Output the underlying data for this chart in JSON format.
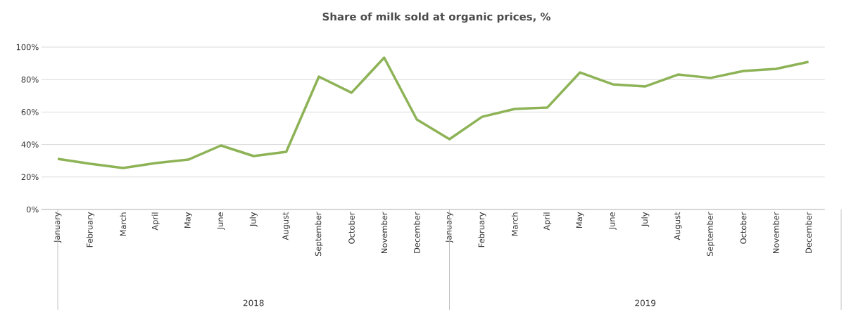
{
  "chart_data": {
    "type": "line",
    "title": "Share of milk sold at organic prices, %",
    "categories": [
      "January",
      "February",
      "March",
      "April",
      "May",
      "June",
      "July",
      "August",
      "September",
      "October",
      "November",
      "December",
      "January",
      "February",
      "March",
      "April",
      "May",
      "June",
      "July",
      "August",
      "September",
      "October",
      "November",
      "December"
    ],
    "series": [
      {
        "color": "#8db356",
        "values": [
          31.2,
          28.1,
          25.5,
          28.6,
          30.7,
          39.4,
          32.9,
          35.5,
          81.8,
          71.9,
          93.5,
          55.4,
          43.3,
          57.1,
          61.9,
          62.8,
          84.4,
          77.1,
          75.8,
          83.1,
          81.0,
          85.3,
          86.6,
          90.9
        ]
      }
    ],
    "ylim": [
      0,
      100
    ],
    "yticks": [
      {
        "value": 0,
        "label": "0%"
      },
      {
        "value": 20,
        "label": "20%"
      },
      {
        "value": 40,
        "label": "40%"
      },
      {
        "value": 60,
        "label": "60%"
      },
      {
        "value": 80,
        "label": "80%"
      },
      {
        "value": 100,
        "label": "100%"
      }
    ],
    "grid": "y",
    "marker": "none",
    "line_style": "solid",
    "annotations": [
      "2018",
      "2019"
    ]
  }
}
